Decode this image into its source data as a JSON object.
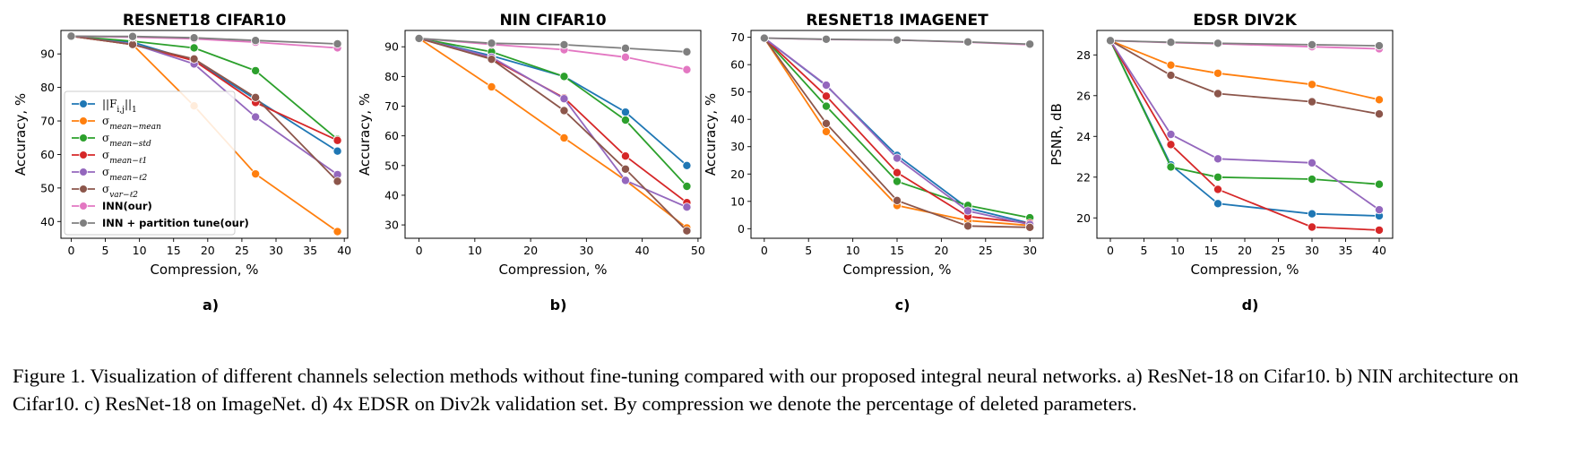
{
  "caption": "Figure 1. Visualization of different channels selection methods without fine-tuning compared with our proposed integral neural networks. a) ResNet-18 on Cifar10. b) NIN architecture on Cifar10. c) ResNet-18 on ImageNet. d) 4x EDSR on Div2k validation set. By compression we denote the percentage of deleted parameters.",
  "legend": [
    {
      "key": "l1",
      "label": "||F_i,j||_1",
      "color": "#1f77b4"
    },
    {
      "key": "mm",
      "label": "σ_mean−mean",
      "color": "#ff7f0e"
    },
    {
      "key": "ms",
      "label": "σ_mean−std",
      "color": "#2ca02c"
    },
    {
      "key": "ml1",
      "label": "σ_mean−ℓ1",
      "color": "#d62728"
    },
    {
      "key": "ml2",
      "label": "σ_mean−ℓ2",
      "color": "#9467bd"
    },
    {
      "key": "vl2",
      "label": "σ_var−ℓ2",
      "color": "#8c564b"
    },
    {
      "key": "inn",
      "label": "INN(our)",
      "color": "#e377c2"
    },
    {
      "key": "innp",
      "label": "INN + partition tune(our)",
      "color": "#7f7f7f"
    }
  ],
  "chart_data": [
    {
      "type": "line",
      "panel": "a)",
      "title": "RESNET18 CIFAR10",
      "xlabel": "Compression, %",
      "ylabel": "Accuracy, %",
      "xlim": [
        -1.5,
        40.5
      ],
      "ylim": [
        35,
        97
      ],
      "xticks": [
        0,
        5,
        10,
        15,
        20,
        25,
        30,
        35,
        40
      ],
      "yticks": [
        40,
        50,
        60,
        70,
        80,
        90
      ],
      "x": [
        0,
        9,
        18,
        27,
        39
      ],
      "series": [
        {
          "name": "||F_i,j||_1",
          "color": "#1f77b4",
          "values": [
            95.3,
            93.5,
            88,
            76.5,
            61
          ]
        },
        {
          "name": "σ_mean−mean",
          "color": "#ff7f0e",
          "values": [
            95.3,
            92.8,
            74.5,
            54.2,
            37
          ]
        },
        {
          "name": "σ_mean−std",
          "color": "#2ca02c",
          "values": [
            95.3,
            93.8,
            91.8,
            85,
            64.5
          ]
        },
        {
          "name": "σ_mean−ℓ1",
          "color": "#d62728",
          "values": [
            95.3,
            92.8,
            88,
            75.5,
            64.2
          ]
        },
        {
          "name": "σ_mean−ℓ2",
          "color": "#9467bd",
          "values": [
            95.3,
            93,
            87,
            71.2,
            54
          ]
        },
        {
          "name": "σ_var−ℓ2",
          "color": "#8c564b",
          "values": [
            95.3,
            92.8,
            88.5,
            77,
            52
          ]
        },
        {
          "name": "INN(our)",
          "color": "#e377c2",
          "values": [
            95.3,
            95,
            94.5,
            93.5,
            91.8
          ]
        },
        {
          "name": "INN + partition tune(our)",
          "color": "#7f7f7f",
          "values": [
            95.3,
            95.2,
            94.8,
            94,
            93
          ]
        }
      ]
    },
    {
      "type": "line",
      "panel": "b)",
      "title": "NIN CIFAR10",
      "xlabel": "Compression, %",
      "ylabel": "Accuracy, %",
      "xlim": [
        -2.5,
        50.5
      ],
      "ylim": [
        25.5,
        95.5
      ],
      "xticks": [
        0,
        10,
        20,
        30,
        40,
        50
      ],
      "yticks": [
        30,
        40,
        50,
        60,
        70,
        80,
        90
      ],
      "x": [
        0,
        13,
        26,
        37,
        48
      ],
      "series": [
        {
          "name": "||F_i,j||_1",
          "color": "#1f77b4",
          "values": [
            92.8,
            87,
            80,
            68,
            50
          ]
        },
        {
          "name": "σ_mean−mean",
          "color": "#ff7f0e",
          "values": [
            92.8,
            76.5,
            59.3,
            45,
            29
          ]
        },
        {
          "name": "σ_mean−std",
          "color": "#2ca02c",
          "values": [
            92.8,
            88.3,
            80,
            65.3,
            43
          ]
        },
        {
          "name": "σ_mean−ℓ1",
          "color": "#d62728",
          "values": [
            92.8,
            86,
            72.8,
            53.2,
            37.5
          ]
        },
        {
          "name": "σ_mean−ℓ2",
          "color": "#9467bd",
          "values": [
            92.8,
            86.5,
            72.5,
            45,
            36
          ]
        },
        {
          "name": "σ_var−ℓ2",
          "color": "#8c564b",
          "values": [
            92.8,
            85.8,
            68.5,
            48.8,
            28
          ]
        },
        {
          "name": "INN(our)",
          "color": "#e377c2",
          "values": [
            92.8,
            90.8,
            89,
            86.5,
            82.3
          ]
        },
        {
          "name": "INN + partition tune(our)",
          "color": "#7f7f7f",
          "values": [
            92.8,
            91.2,
            90.7,
            89.5,
            88.3
          ]
        }
      ]
    },
    {
      "type": "line",
      "panel": "c)",
      "title": "RESNET18 IMAGENET",
      "xlabel": "Compression, %",
      "ylabel": "Accuracy, %",
      "xlim": [
        -1.5,
        31.5
      ],
      "ylim": [
        -3.5,
        72.5
      ],
      "xticks": [
        0,
        5,
        10,
        15,
        20,
        25,
        30
      ],
      "yticks": [
        0,
        10,
        20,
        30,
        40,
        50,
        60,
        70
      ],
      "x": [
        0,
        7,
        15,
        23,
        30
      ],
      "series": [
        {
          "name": "||F_i,j||_1",
          "color": "#1f77b4",
          "values": [
            69.7,
            52.3,
            26.8,
            7.5,
            2
          ]
        },
        {
          "name": "σ_mean−mean",
          "color": "#ff7f0e",
          "values": [
            69.7,
            35.5,
            8.5,
            3,
            1.2
          ]
        },
        {
          "name": "σ_mean−std",
          "color": "#2ca02c",
          "values": [
            69.7,
            44.8,
            17.3,
            8.5,
            4
          ]
        },
        {
          "name": "σ_mean−ℓ1",
          "color": "#d62728",
          "values": [
            69.7,
            48.5,
            20.5,
            4.5,
            2
          ]
        },
        {
          "name": "σ_mean−ℓ2",
          "color": "#9467bd",
          "values": [
            69.7,
            52.5,
            25.8,
            6.5,
            1.5
          ]
        },
        {
          "name": "σ_var−ℓ2",
          "color": "#8c564b",
          "values": [
            69.7,
            38.5,
            10.3,
            1,
            0.5
          ]
        },
        {
          "name": "INN(our)",
          "color": "#e377c2",
          "values": [
            69.7,
            69.2,
            69,
            68.2,
            67.3
          ]
        },
        {
          "name": "INN + partition tune(our)",
          "color": "#7f7f7f",
          "values": [
            69.7,
            69.3,
            69,
            68.3,
            67.5
          ]
        }
      ]
    },
    {
      "type": "line",
      "panel": "d)",
      "title": "EDSR DIV2K",
      "xlabel": "Compression, %",
      "ylabel": "PSNR, dB",
      "xlim": [
        -2,
        42
      ],
      "ylim": [
        19,
        29.2
      ],
      "xticks": [
        0,
        5,
        10,
        15,
        20,
        25,
        30,
        35,
        40
      ],
      "yticks": [
        20,
        22,
        24,
        26,
        28
      ],
      "x": [
        0,
        9,
        16,
        30,
        40
      ],
      "series": [
        {
          "name": "||F_i,j||_1",
          "color": "#1f77b4",
          "values": [
            28.7,
            22.6,
            20.7,
            20.2,
            20.1
          ]
        },
        {
          "name": "σ_mean−mean",
          "color": "#ff7f0e",
          "values": [
            28.7,
            27.5,
            27.1,
            26.55,
            25.8
          ]
        },
        {
          "name": "σ_mean−std",
          "color": "#2ca02c",
          "values": [
            28.7,
            22.5,
            22,
            21.9,
            21.65
          ]
        },
        {
          "name": "σ_mean−ℓ1",
          "color": "#d62728",
          "values": [
            28.7,
            23.6,
            21.4,
            19.55,
            19.4
          ]
        },
        {
          "name": "σ_mean−ℓ2",
          "color": "#9467bd",
          "values": [
            28.7,
            24.1,
            22.9,
            22.7,
            20.4
          ]
        },
        {
          "name": "σ_var−ℓ2",
          "color": "#8c564b",
          "values": [
            28.7,
            27,
            26.1,
            25.7,
            25.1
          ]
        },
        {
          "name": "INN(our)",
          "color": "#e377c2",
          "values": [
            28.7,
            28.6,
            28.55,
            28.4,
            28.3
          ]
        },
        {
          "name": "INN + partition tune(our)",
          "color": "#7f7f7f",
          "values": [
            28.7,
            28.62,
            28.57,
            28.5,
            28.45
          ]
        }
      ]
    }
  ]
}
